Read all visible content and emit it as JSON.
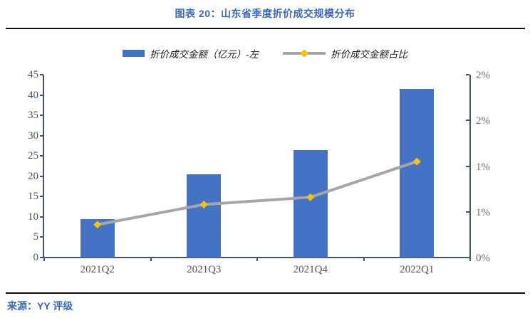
{
  "header": {
    "title": "图表 20：山东省季度折价成交规模分布"
  },
  "footer": {
    "source": "来源：YY 评级"
  },
  "legend": {
    "items": [
      {
        "label": "折价成交金额（亿元）-左",
        "marker": "bar-swatch"
      },
      {
        "label": "折价成交金额占比",
        "marker": "line-with-diamond"
      }
    ]
  },
  "colors": {
    "bar_blue": "#4472c4",
    "line_gray": "#a6a6a6",
    "diamond_gold": "#ffc000",
    "axis_navy": "#44546a",
    "title_blue": "#3a68bc",
    "divider_black": "#101010"
  },
  "chart_data": {
    "type": "bar",
    "subtype": "combo-bar-line-dual-axis",
    "categories": [
      "2021Q2",
      "2021Q3",
      "2021Q4",
      "2022Q1"
    ],
    "series": [
      {
        "name": "折价成交金额（亿元）-左",
        "type": "bar",
        "axis": "left",
        "color": "#4472c4",
        "values": [
          9.5,
          20.5,
          26.5,
          41.5
        ]
      },
      {
        "name": "折价成交金额占比",
        "type": "line",
        "axis": "right",
        "line_color": "#a6a6a6",
        "marker": "diamond",
        "marker_color": "#ffc000",
        "values_pct": [
          0.36,
          0.58,
          0.66,
          1.05
        ]
      }
    ],
    "left_axis": {
      "min": 0,
      "max": 45,
      "tick_step": 5,
      "tick_labels_top_to_bottom": [
        "45",
        "40",
        "35",
        "30",
        "25",
        "20",
        "15",
        "10",
        "5",
        "0"
      ]
    },
    "right_axis": {
      "min": 0,
      "max": 2,
      "tick_step": 0.5,
      "tick_labels_top_to_bottom": [
        "2%",
        "2%",
        "1%",
        "1%",
        "0%"
      ]
    },
    "grid": false,
    "legend_position": "top"
  }
}
